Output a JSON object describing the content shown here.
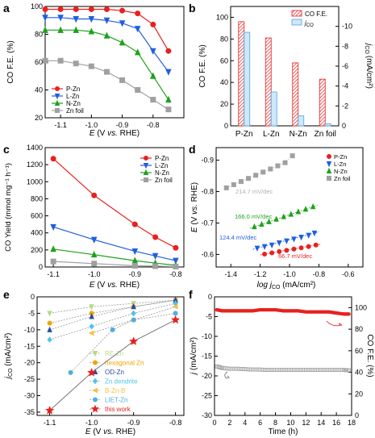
{
  "chart_data": [
    {
      "panel": "a",
      "type": "line",
      "xlabel": "E (V vs. RHE)",
      "ylabel": "CO F.E. (%)",
      "xlim": [
        -1.15,
        -0.7
      ],
      "ylim": [
        20,
        100
      ],
      "xticks": [
        "-1.1",
        "-1.0",
        "-0.9",
        "-0.8"
      ],
      "yticks": [
        "20",
        "40",
        "60",
        "80",
        "100"
      ],
      "legend_position": "bottom-left",
      "x": [
        -1.15,
        -1.1,
        -1.05,
        -1.0,
        -0.95,
        -0.9,
        -0.85,
        -0.8,
        -0.75
      ],
      "series": [
        {
          "name": "P-Zn",
          "color": "#e8211e",
          "marker": "circle",
          "values": [
            98,
            98,
            98,
            98,
            98,
            97,
            95,
            87,
            68
          ]
        },
        {
          "name": "L-Zn",
          "color": "#1f5fe0",
          "marker": "triangle-down",
          "values": [
            92,
            92,
            91,
            91,
            90,
            88,
            84,
            68,
            53
          ]
        },
        {
          "name": "N-Zn",
          "color": "#1ea11e",
          "marker": "triangle-up",
          "values": [
            83,
            83,
            83,
            82,
            79,
            74,
            67,
            50,
            33
          ]
        },
        {
          "name": "Zn foil",
          "color": "#a0a0a0",
          "marker": "square",
          "values": [
            61,
            61,
            59,
            57,
            53,
            47,
            40,
            33,
            26
          ]
        }
      ]
    },
    {
      "panel": "b",
      "type": "bar",
      "ylabel": "CO F.E. (%)",
      "y2label_main": "j",
      "y2label_sub": "CO",
      "y2label_unit": "(mA/cm²)",
      "ylim": [
        0,
        110
      ],
      "y2lim": [
        0,
        -12
      ],
      "yticks": [
        "0",
        "20",
        "40",
        "60",
        "80",
        "100"
      ],
      "y2ticks": [
        "0",
        "-2",
        "-4",
        "-6",
        "-8",
        "-10"
      ],
      "categories": [
        "P-Zn",
        "L-Zn",
        "N-Zn",
        "Zn foil"
      ],
      "legend_position": "top-right",
      "series": [
        {
          "name": "CO F.E.",
          "color": "#e8211e",
          "axis": "left",
          "values": [
            96,
            81,
            58,
            43
          ]
        },
        {
          "name_main": "j",
          "name_sub": "CO",
          "color": "#4fa3e6",
          "axis": "right",
          "values": [
            -9.4,
            -3.4,
            -1.0,
            -0.2
          ]
        }
      ]
    },
    {
      "panel": "c",
      "type": "line",
      "xlabel": "E (V vs. RHE)",
      "ylabel": "CO Yield (mmol mg⁻¹ h⁻¹)",
      "xlim": [
        -1.12,
        -0.78
      ],
      "ylim": [
        0,
        1400
      ],
      "xticks": [
        "-1.1",
        "-1.0",
        "-0.9",
        "-0.8"
      ],
      "yticks": [
        "0",
        "200",
        "400",
        "600",
        "800",
        "1000",
        "1200",
        "1400"
      ],
      "legend_position": "top-right",
      "x": [
        -1.1,
        -1.0,
        -0.9,
        -0.85,
        -0.8
      ],
      "series": [
        {
          "name": "P-Zn",
          "color": "#e8211e",
          "marker": "circle",
          "values": [
            1270,
            840,
            500,
            350,
            225
          ]
        },
        {
          "name": "L-Zn",
          "color": "#1f5fe0",
          "marker": "triangle-down",
          "values": [
            470,
            320,
            185,
            130,
            75
          ]
        },
        {
          "name": "N-Zn",
          "color": "#1ea11e",
          "marker": "triangle-up",
          "values": [
            210,
            145,
            75,
            45,
            20
          ]
        },
        {
          "name": "Zn foil",
          "color": "#a0a0a0",
          "marker": "square",
          "values": [
            65,
            40,
            15,
            10,
            5
          ]
        }
      ]
    },
    {
      "panel": "d",
      "type": "scatter",
      "xlabel": "log jCO (mA/cm²)",
      "ylabel": "E (V vs. RHE)",
      "xlim": [
        -1.5,
        -0.5
      ],
      "ylim": [
        -0.56,
        -0.94
      ],
      "xticks": [
        "-1.4",
        "-1.2",
        "-1.0",
        "-0.8",
        "-0.6"
      ],
      "yticks": [
        "-0.6",
        "-0.7",
        "-0.8",
        "-0.9"
      ],
      "legend_position": "top-right",
      "series": [
        {
          "name": "P-Zn",
          "color": "#e8211e",
          "marker": "circle",
          "x": [
            -1.17,
            -1.12,
            -1.07,
            -1.02,
            -0.97,
            -0.92,
            -0.87,
            -0.82
          ],
          "values": [
            -0.601,
            -0.605,
            -0.609,
            -0.613,
            -0.617,
            -0.621,
            -0.625,
            -0.63
          ]
        },
        {
          "name": "L-Zn",
          "color": "#1f5fe0",
          "marker": "triangle-down",
          "x": [
            -1.22,
            -1.17,
            -1.12,
            -1.07,
            -1.02,
            -0.97,
            -0.92,
            -0.87,
            -0.83
          ],
          "values": [
            -0.62,
            -0.625,
            -0.63,
            -0.637,
            -0.643,
            -0.649,
            -0.655,
            -0.661,
            -0.668
          ]
        },
        {
          "name": "N-Zn",
          "color": "#1ea11e",
          "marker": "triangle-up",
          "x": [
            -1.24,
            -1.19,
            -1.14,
            -1.09,
            -1.04,
            -0.99,
            -0.94,
            -0.89,
            -0.84
          ],
          "values": [
            -0.688,
            -0.696,
            -0.704,
            -0.712,
            -0.72,
            -0.728,
            -0.736,
            -0.744,
            -0.752
          ]
        },
        {
          "name": "Zn foil",
          "color": "#a0a0a0",
          "marker": "square",
          "x": [
            -1.43,
            -1.38,
            -1.33,
            -1.28,
            -1.23,
            -1.18,
            -1.13,
            -1.08,
            -1.03,
            -0.98
          ],
          "values": [
            -0.812,
            -0.822,
            -0.832,
            -0.842,
            -0.852,
            -0.862,
            -0.872,
            -0.882,
            -0.892,
            -0.914
          ]
        }
      ],
      "annotations": [
        {
          "text": "214.7 mV/dec",
          "color": "#b0b0b0"
        },
        {
          "text": "166.0 mV/dec",
          "color": "#1ea11e"
        },
        {
          "text": "124.4 mV/dec",
          "color": "#1f5fe0"
        },
        {
          "text": "66.7 mV/dec",
          "color": "#e8211e"
        }
      ]
    },
    {
      "panel": "e",
      "type": "line",
      "xlabel": "E (V vs. RHE)",
      "ylabel": "jCO (mA/cm²)",
      "xlim": [
        -1.13,
        -0.78
      ],
      "ylim": [
        -36,
        0
      ],
      "xticks": [
        "-1.1",
        "-1.0",
        "-0.9",
        "-0.8"
      ],
      "yticks": [
        "-35",
        "-30",
        "-25",
        "-20",
        "-15",
        "-10",
        "-5",
        "0"
      ],
      "legend_position": "bottom-center",
      "series": [
        {
          "name": "RE-Zn",
          "color": "#b5d98a",
          "marker": "triangle-down",
          "x": [
            -1.1,
            -1.0,
            -0.9,
            -0.8
          ],
          "values": [
            -5,
            -3,
            -2,
            -1
          ]
        },
        {
          "name": "hexagonal Zn",
          "color": "#f0a500",
          "marker": "circle",
          "x": [
            -1.1,
            -1.0,
            -0.9,
            -0.8
          ],
          "values": [
            -8,
            -5,
            -3,
            -1
          ]
        },
        {
          "name": "OD-Zn",
          "color": "#2c4aa0",
          "marker": "triangle-up",
          "x": [
            -1.1,
            -1.0,
            -0.9,
            -0.8
          ],
          "values": [
            -10,
            -6,
            -3,
            -1
          ]
        },
        {
          "name": "Zn dendrite",
          "color": "#4fc3e8",
          "marker": "diamond",
          "x": [
            -1.1,
            -1.0,
            -0.9,
            -0.8
          ],
          "values": [
            -13,
            -9,
            -5,
            -2
          ]
        },
        {
          "name": "B-Zn-B",
          "color": "#f5c242",
          "marker": "triangle-left",
          "x": [
            -1.0,
            -0.9,
            -0.8
          ],
          "values": [
            -11,
            -7,
            -3
          ]
        },
        {
          "name": "LIET-Zn",
          "color": "#4faee0",
          "marker": "hexagon",
          "x": [
            -1.05,
            -0.95,
            -0.9,
            -0.8
          ],
          "values": [
            -23,
            -10,
            -7,
            -5
          ]
        },
        {
          "name": "this work",
          "color": "#e8211e",
          "marker": "star",
          "x": [
            -1.1,
            -1.0,
            -0.9,
            -0.8
          ],
          "values": [
            -34.5,
            -23,
            -13.5,
            -7
          ]
        }
      ]
    },
    {
      "panel": "f",
      "type": "scatter",
      "xlabel": "Time (h)",
      "ylabel": "j (mA/cm²)",
      "y2label": "CO F.E. (%)",
      "xlim": [
        0,
        18
      ],
      "ylim": [
        -30,
        0
      ],
      "y2lim": [
        0,
        110
      ],
      "xticks": [
        "0",
        "2",
        "4",
        "6",
        "8",
        "10",
        "12",
        "14",
        "16",
        "18"
      ],
      "yticks": [
        "-30",
        "-25",
        "-20",
        "-15",
        "-10",
        "-5",
        "0"
      ],
      "y2ticks": [
        "0",
        "20",
        "40",
        "60",
        "80",
        "100"
      ],
      "series": [
        {
          "axis": "right",
          "color": "#e8211e",
          "marker": "circle",
          "x": [
            0.3,
            1.0,
            2.0,
            3.0,
            4.0,
            5.0,
            6.0,
            7.0,
            8.0,
            9.0,
            10.0,
            11.0,
            12.0,
            13.0,
            14.0,
            15.0,
            16.0,
            17.0,
            17.8
          ],
          "values": [
            98,
            97,
            97,
            97,
            97,
            97,
            98,
            98,
            98,
            97,
            97,
            97,
            96,
            96,
            96,
            96,
            95,
            94,
            94
          ]
        },
        {
          "axis": "left",
          "color": "#a0a0a0",
          "marker": "square",
          "x": [
            0.3,
            1.0,
            2.0,
            3.0,
            4.0,
            5.0,
            6.0,
            7.0,
            8.0,
            9.0,
            10.0,
            11.0,
            12.0,
            13.0,
            14.0,
            15.0,
            16.0,
            17.0,
            17.8
          ],
          "values": [
            -17.6,
            -18,
            -18.2,
            -18.2,
            -18.3,
            -18.4,
            -18.4,
            -18.5,
            -18.5,
            -18.5,
            -18.5,
            -18.5,
            -18.5,
            -18.5,
            -18.5,
            -18.5,
            -18.5,
            -18.5,
            -18.6
          ]
        }
      ]
    }
  ]
}
